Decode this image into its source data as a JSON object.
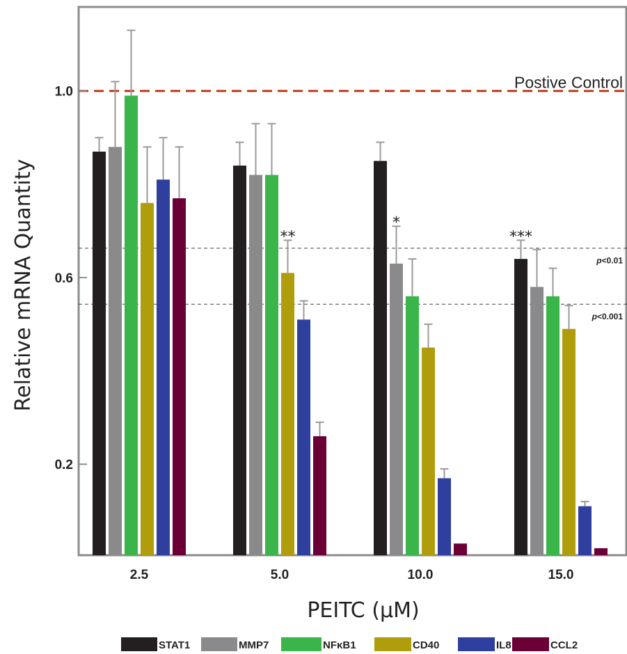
{
  "chart_data": {
    "type": "bar",
    "title": "",
    "xlabel": "PEITC (μM)",
    "ylabel": "Relative mRNA Quantity",
    "categories": [
      "2.5",
      "5.0",
      "10.0",
      "15.0"
    ],
    "y_ticks": [
      "0.2",
      "0.6",
      "1.0"
    ],
    "ylim": [
      0.005,
      1.18
    ],
    "grid": false,
    "legend_position": "bottom",
    "series": [
      {
        "name": "STAT1",
        "color": "#231f20",
        "values": [
          0.87,
          0.84,
          0.85,
          0.64
        ],
        "errors": [
          0.03,
          0.05,
          0.04,
          0.04
        ]
      },
      {
        "name": "MMP7",
        "color": "#8a8a8d",
        "values": [
          0.88,
          0.82,
          0.63,
          0.58
        ],
        "errors": [
          0.14,
          0.11,
          0.08,
          0.08
        ]
      },
      {
        "name": "NFκB1",
        "color": "#39b54a",
        "values": [
          0.99,
          0.82,
          0.56,
          0.56
        ],
        "errors": [
          0.14,
          0.11,
          0.08,
          0.06
        ]
      },
      {
        "name": "CD40",
        "color": "#b09d0b",
        "values": [
          0.76,
          0.61,
          0.45,
          0.49
        ],
        "errors": [
          0.12,
          0.07,
          0.05,
          0.05
        ]
      },
      {
        "name": "IL8",
        "color": "#2e3f9e",
        "values": [
          0.81,
          0.51,
          0.17,
          0.11
        ],
        "errors": [
          0.09,
          0.04,
          0.02,
          0.01
        ]
      },
      {
        "name": "CCL2",
        "color": "#6b0036",
        "values": [
          0.77,
          0.26,
          0.03,
          0.02
        ],
        "errors": [
          0.11,
          0.03,
          0.0,
          0.0
        ]
      }
    ],
    "reference_line": {
      "value": 1.0,
      "label": "Postive Control",
      "color": "#c0391b"
    },
    "thresholds": [
      {
        "value": 0.663,
        "label": "p<0.01"
      },
      {
        "value": 0.543,
        "label": "p<0.001"
      }
    ],
    "annotations": [
      {
        "category": 1,
        "series": 3,
        "text": "**"
      },
      {
        "category": 2,
        "series": 1,
        "text": "*"
      },
      {
        "category": 3,
        "series": 0,
        "text": "***"
      }
    ]
  }
}
